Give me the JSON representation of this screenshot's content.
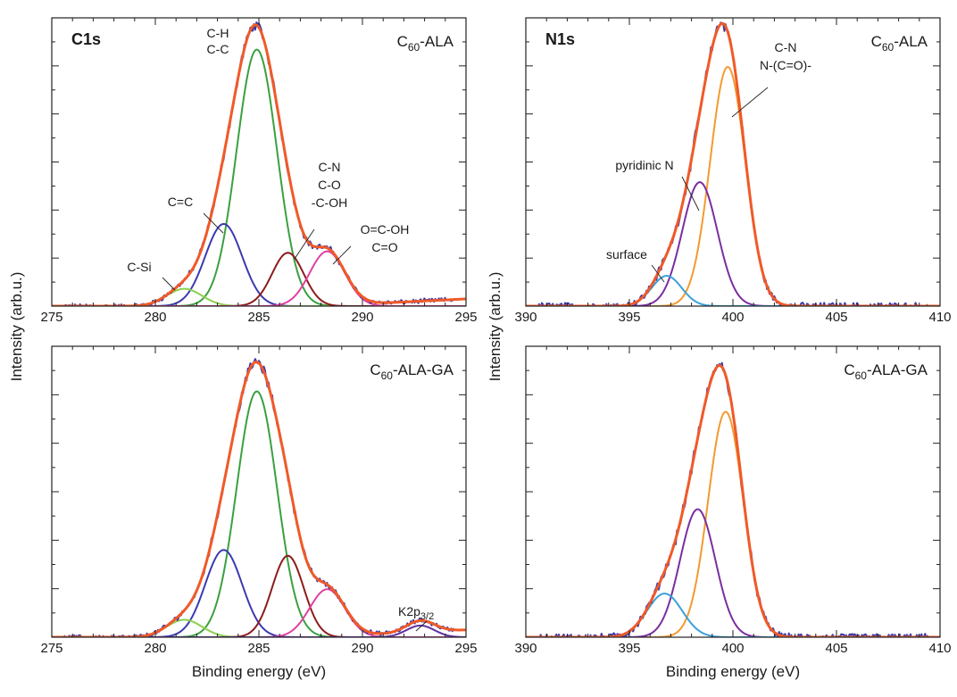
{
  "figure": {
    "ylabel": "Intensity (arb.u.)",
    "xlabel": "Binding energy (eV)"
  },
  "colors": {
    "data": "#3a3aa8",
    "envelope": "#f05a28",
    "c_h_c_c": "#3aa040",
    "c_eq_c": "#3a3ab0",
    "c_si": "#8cd050",
    "c_n_c_o": "#8b1c1c",
    "o_eq_c_oh": "#e040a0",
    "k2p": "#6030a0",
    "n_cn": "#f39a30",
    "n_pyridinic": "#7a2ea0",
    "n_surface": "#3aa0d8"
  },
  "chart_data": [
    {
      "id": "c1s-top",
      "type": "line",
      "title": "C1s",
      "sample": {
        "base": "C",
        "sub": "60",
        "rest": "-ALA"
      },
      "xlim": [
        275,
        295
      ],
      "xticks": [
        275,
        280,
        285,
        290,
        295
      ],
      "xlabel": "",
      "series": [
        {
          "name": "C-H C-C",
          "center": 284.9,
          "height": 0.89,
          "fwhm": 2.3,
          "color": "c_h_c_c"
        },
        {
          "name": "C=C",
          "center": 283.3,
          "height": 0.285,
          "fwhm": 2.1,
          "color": "c_eq_c"
        },
        {
          "name": "C-Si",
          "center": 281.4,
          "height": 0.06,
          "fwhm": 2.0,
          "color": "c_si"
        },
        {
          "name": "C-N C-O -C-OH",
          "center": 286.4,
          "height": 0.185,
          "fwhm": 1.8,
          "color": "c_n_c_o"
        },
        {
          "name": "O=C-OH C=O",
          "center": 288.3,
          "height": 0.19,
          "fwhm": 2.0,
          "color": "o_eq_c_oh"
        }
      ],
      "annotations": [
        {
          "lines": [
            "C-H",
            "C-C"
          ]
        },
        {
          "lines": [
            "C=C"
          ]
        },
        {
          "lines": [
            "C-Si"
          ]
        },
        {
          "lines": [
            "C-N",
            "C-O",
            "-C-OH"
          ]
        },
        {
          "lines": [
            "O=C-OH",
            "C=O"
          ]
        }
      ]
    },
    {
      "id": "n1s-top",
      "type": "line",
      "title": "N1s",
      "sample": {
        "base": "C",
        "sub": "60",
        "rest": "-ALA"
      },
      "xlim": [
        390,
        410
      ],
      "xticks": [
        390,
        395,
        400,
        405,
        410
      ],
      "xlabel": "",
      "series": [
        {
          "name": "C-N N-(C=O)-",
          "center": 399.75,
          "height": 0.83,
          "fwhm": 2.0,
          "color": "n_cn"
        },
        {
          "name": "pyridinic N",
          "center": 398.4,
          "height": 0.43,
          "fwhm": 2.0,
          "color": "n_pyridinic"
        },
        {
          "name": "surface",
          "center": 396.8,
          "height": 0.105,
          "fwhm": 1.7,
          "color": "n_surface"
        }
      ],
      "annotations": [
        {
          "lines": [
            "C-N",
            "N-(C=O)-"
          ]
        },
        {
          "lines": [
            "pyridinic N"
          ]
        },
        {
          "lines": [
            "surface"
          ]
        }
      ]
    },
    {
      "id": "c1s-bottom",
      "type": "line",
      "title": "",
      "sample": {
        "base": "C",
        "sub": "60",
        "rest": "-ALA-GA"
      },
      "xlim": [
        275,
        295
      ],
      "xticks": [
        275,
        280,
        285,
        290,
        295
      ],
      "xlabel": "Binding energy (eV)",
      "series": [
        {
          "name": "C-H C-C",
          "center": 284.9,
          "height": 0.845,
          "fwhm": 2.3,
          "color": "c_h_c_c"
        },
        {
          "name": "C=C",
          "center": 283.3,
          "height": 0.3,
          "fwhm": 2.1,
          "color": "c_eq_c"
        },
        {
          "name": "C-Si",
          "center": 281.4,
          "height": 0.06,
          "fwhm": 2.0,
          "color": "c_si"
        },
        {
          "name": "C-N C-O -C-OH",
          "center": 286.4,
          "height": 0.28,
          "fwhm": 1.8,
          "color": "c_n_c_o"
        },
        {
          "name": "O=C-OH C=O",
          "center": 288.3,
          "height": 0.165,
          "fwhm": 2.0,
          "color": "o_eq_c_oh"
        },
        {
          "name": "K2p3/2",
          "center": 292.8,
          "height": 0.04,
          "fwhm": 1.6,
          "color": "k2p"
        }
      ],
      "annotations": [
        {
          "lines": [
            "K2p"
          ],
          "sub": "3/2"
        }
      ]
    },
    {
      "id": "n1s-bottom",
      "type": "line",
      "title": "",
      "sample": {
        "base": "C",
        "sub": "60",
        "rest": "-ALA-GA"
      },
      "xlim": [
        390,
        410
      ],
      "xticks": [
        390,
        395,
        400,
        405,
        410
      ],
      "xlabel": "Binding energy (eV)",
      "series": [
        {
          "name": "C-N N-(C=O)-",
          "center": 399.65,
          "height": 0.775,
          "fwhm": 2.0,
          "color": "n_cn"
        },
        {
          "name": "pyridinic N",
          "center": 398.3,
          "height": 0.44,
          "fwhm": 2.0,
          "color": "n_pyridinic"
        },
        {
          "name": "surface",
          "center": 396.7,
          "height": 0.15,
          "fwhm": 2.0,
          "color": "n_surface"
        }
      ],
      "annotations": []
    }
  ]
}
